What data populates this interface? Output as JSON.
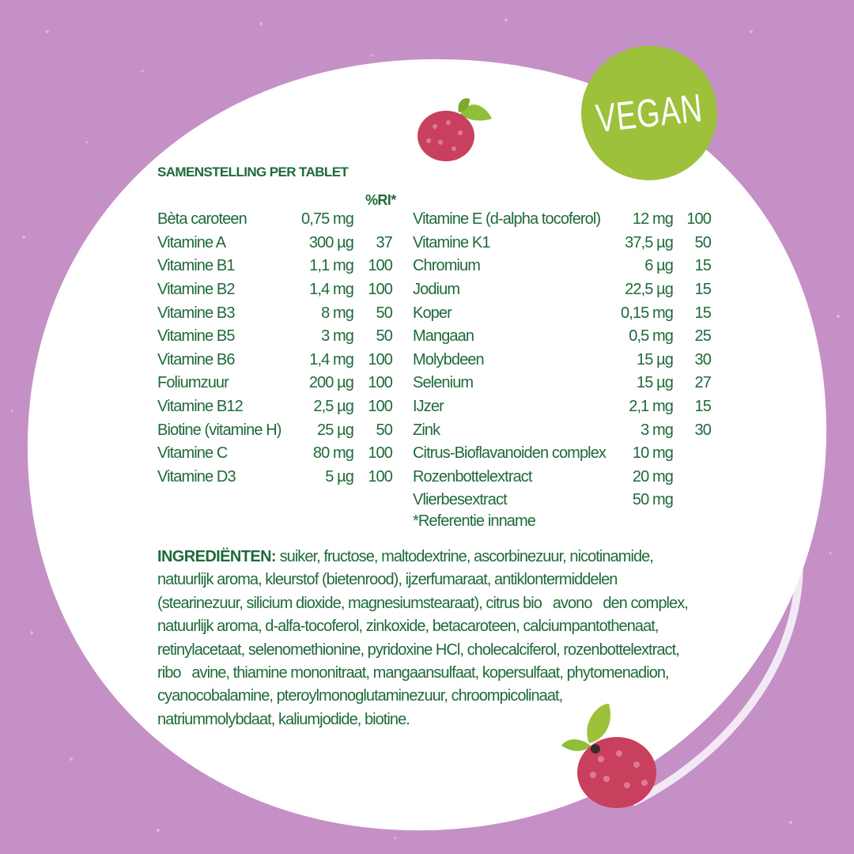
{
  "badge": {
    "label": "VEGAN",
    "color": "#9dc13b"
  },
  "colors": {
    "background": "#c490c6",
    "text": "#1e6a3a",
    "panel": "#ffffff",
    "raspberry": "#c9405f"
  },
  "composition": {
    "title": "SAMENSTELLING PER TABLET",
    "ri_header": "%RI*",
    "left": [
      {
        "name": "Bèta caroteen",
        "amount": "0,75 mg",
        "ri": ""
      },
      {
        "name": "Vitamine A",
        "amount": "300 µg",
        "ri": "37"
      },
      {
        "name": "Vitamine B1",
        "amount": "1,1 mg",
        "ri": "100"
      },
      {
        "name": "Vitamine B2",
        "amount": "1,4 mg",
        "ri": "100"
      },
      {
        "name": "Vitamine B3",
        "amount": "8 mg",
        "ri": "50"
      },
      {
        "name": "Vitamine B5",
        "amount": "3 mg",
        "ri": "50"
      },
      {
        "name": "Vitamine B6",
        "amount": "1,4 mg",
        "ri": "100"
      },
      {
        "name": "Foliumzuur",
        "amount": "200 µg",
        "ri": "100"
      },
      {
        "name": "Vitamine B12",
        "amount": "2,5 µg",
        "ri": "100"
      },
      {
        "name": "Biotine (vitamine H)",
        "amount": "25 µg",
        "ri": "50"
      },
      {
        "name": "Vitamine C",
        "amount": "80 mg",
        "ri": "100"
      },
      {
        "name": "Vitamine D3",
        "amount": "5 µg",
        "ri": "100"
      }
    ],
    "right": [
      {
        "name": "Vitamine E (d-alpha tocoferol)",
        "amount": "12 mg",
        "ri": "100"
      },
      {
        "name": "Vitamine K1",
        "amount": "37,5 µg",
        "ri": "50"
      },
      {
        "name": "Chromium",
        "amount": "6 µg",
        "ri": "15"
      },
      {
        "name": "Jodium",
        "amount": "22,5 µg",
        "ri": "15"
      },
      {
        "name": "Koper",
        "amount": "0,15 mg",
        "ri": "15"
      },
      {
        "name": "Mangaan",
        "amount": "0,5 mg",
        "ri": "25"
      },
      {
        "name": "Molybdeen",
        "amount": "15 µg",
        "ri": "30"
      },
      {
        "name": "Selenium",
        "amount": "15 µg",
        "ri": "27"
      },
      {
        "name": "IJzer",
        "amount": "2,1 mg",
        "ri": "15"
      },
      {
        "name": "Zink",
        "amount": "3 mg",
        "ri": "30"
      },
      {
        "name": "Citrus-Bioflavanoiden complex",
        "amount": "10 mg",
        "ri": ""
      },
      {
        "name": "Rozenbottelextract",
        "amount": "20 mg",
        "ri": ""
      },
      {
        "name": "Vlierbesextract",
        "amount": "50 mg",
        "ri": ""
      }
    ],
    "footnote": "*Referentie inname"
  },
  "ingredients": {
    "label": "INGREDIËNTEN:",
    "lines": [
      " suiker, fructose, maltodextrine, ascorbinezuur, nicotinamide,",
      "natuurlijk aroma, kleurstof (bietenrood), ijzerfumaraat, antiklontermiddelen",
      "(stearinezuur, silicium dioxide, magnesiumstearaat), citrus bio   avono   den complex,",
      "natuurlijk aroma, d-alfa-tocoferol, zinkoxide, betacaroteen, calciumpantothenaat,",
      "retinylacetaat, selenomethionine, pyridoxine HCl, cholecalciferol, rozenbottelextract,",
      "ribo   avine, thiamine mononitraat, mangaansulfaat, kopersulfaat, phytomenadion,",
      "cyanocobalamine, pteroylmonoglutaminezuur, chroompicolinaat,",
      "natriummolybdaat, kaliumjodide, biotine."
    ]
  }
}
